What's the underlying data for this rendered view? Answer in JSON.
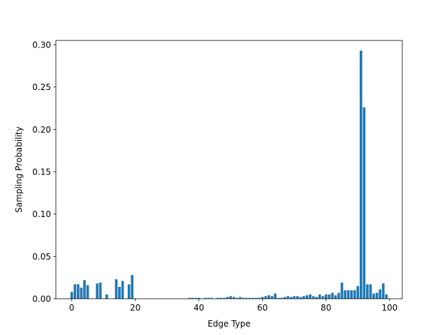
{
  "chart_data": {
    "type": "bar",
    "title": "",
    "xlabel": "Edge Type",
    "ylabel": "Sampling Probability",
    "xlim": [
      -5,
      104
    ],
    "ylim": [
      0,
      0.305
    ],
    "grid": false,
    "bar_color": "#1f77b4",
    "x_ticks": [
      0,
      20,
      40,
      60,
      80,
      100
    ],
    "x_tick_labels": [
      "0",
      "20",
      "40",
      "60",
      "80",
      "100"
    ],
    "y_ticks": [
      0,
      0.05,
      0.1,
      0.15,
      0.2,
      0.25,
      0.3
    ],
    "y_tick_labels": [
      "0.00",
      "0.05",
      "0.10",
      "0.15",
      "0.20",
      "0.25",
      "0.30"
    ],
    "x": [
      0,
      1,
      2,
      3,
      4,
      5,
      6,
      7,
      8,
      9,
      10,
      11,
      12,
      13,
      14,
      15,
      16,
      17,
      18,
      19,
      20,
      21,
      22,
      23,
      24,
      25,
      26,
      27,
      28,
      29,
      30,
      31,
      32,
      33,
      34,
      35,
      36,
      37,
      38,
      39,
      40,
      41,
      42,
      43,
      44,
      45,
      46,
      47,
      48,
      49,
      50,
      51,
      52,
      53,
      54,
      55,
      56,
      57,
      58,
      59,
      60,
      61,
      62,
      63,
      64,
      65,
      66,
      67,
      68,
      69,
      70,
      71,
      72,
      73,
      74,
      75,
      76,
      77,
      78,
      79,
      80,
      81,
      82,
      83,
      84,
      85,
      86,
      87,
      88,
      89,
      90,
      91,
      92,
      93,
      94,
      95,
      96,
      97,
      98,
      99
    ],
    "values": [
      0.008,
      0.017,
      0.017,
      0.013,
      0.022,
      0.016,
      0,
      0,
      0.018,
      0.019,
      0,
      0.005,
      0,
      0,
      0.023,
      0.014,
      0.021,
      0,
      0.017,
      0.028,
      0,
      0,
      0,
      0,
      0,
      0,
      0,
      0,
      0,
      0,
      0,
      0,
      0,
      0,
      0,
      0,
      0,
      0.001,
      0.001,
      0.001,
      0.001,
      0,
      0.001,
      0.001,
      0.001,
      0,
      0.001,
      0.001,
      0.001,
      0.002,
      0.003,
      0.002,
      0.001,
      0.002,
      0.001,
      0.001,
      0.001,
      0.001,
      0.001,
      0.001,
      0.002,
      0.003,
      0.004,
      0.003,
      0.006,
      0.001,
      0.001,
      0.002,
      0.003,
      0.002,
      0.003,
      0.003,
      0.002,
      0.003,
      0.004,
      0.005,
      0.003,
      0.002,
      0.005,
      0.003,
      0.005,
      0.005,
      0.007,
      0.004,
      0.007,
      0.019,
      0.01,
      0.01,
      0.01,
      0.01,
      0.015,
      0.293,
      0.226,
      0.017,
      0.017,
      0.006,
      0.007,
      0.011,
      0.018,
      0.005
    ]
  }
}
